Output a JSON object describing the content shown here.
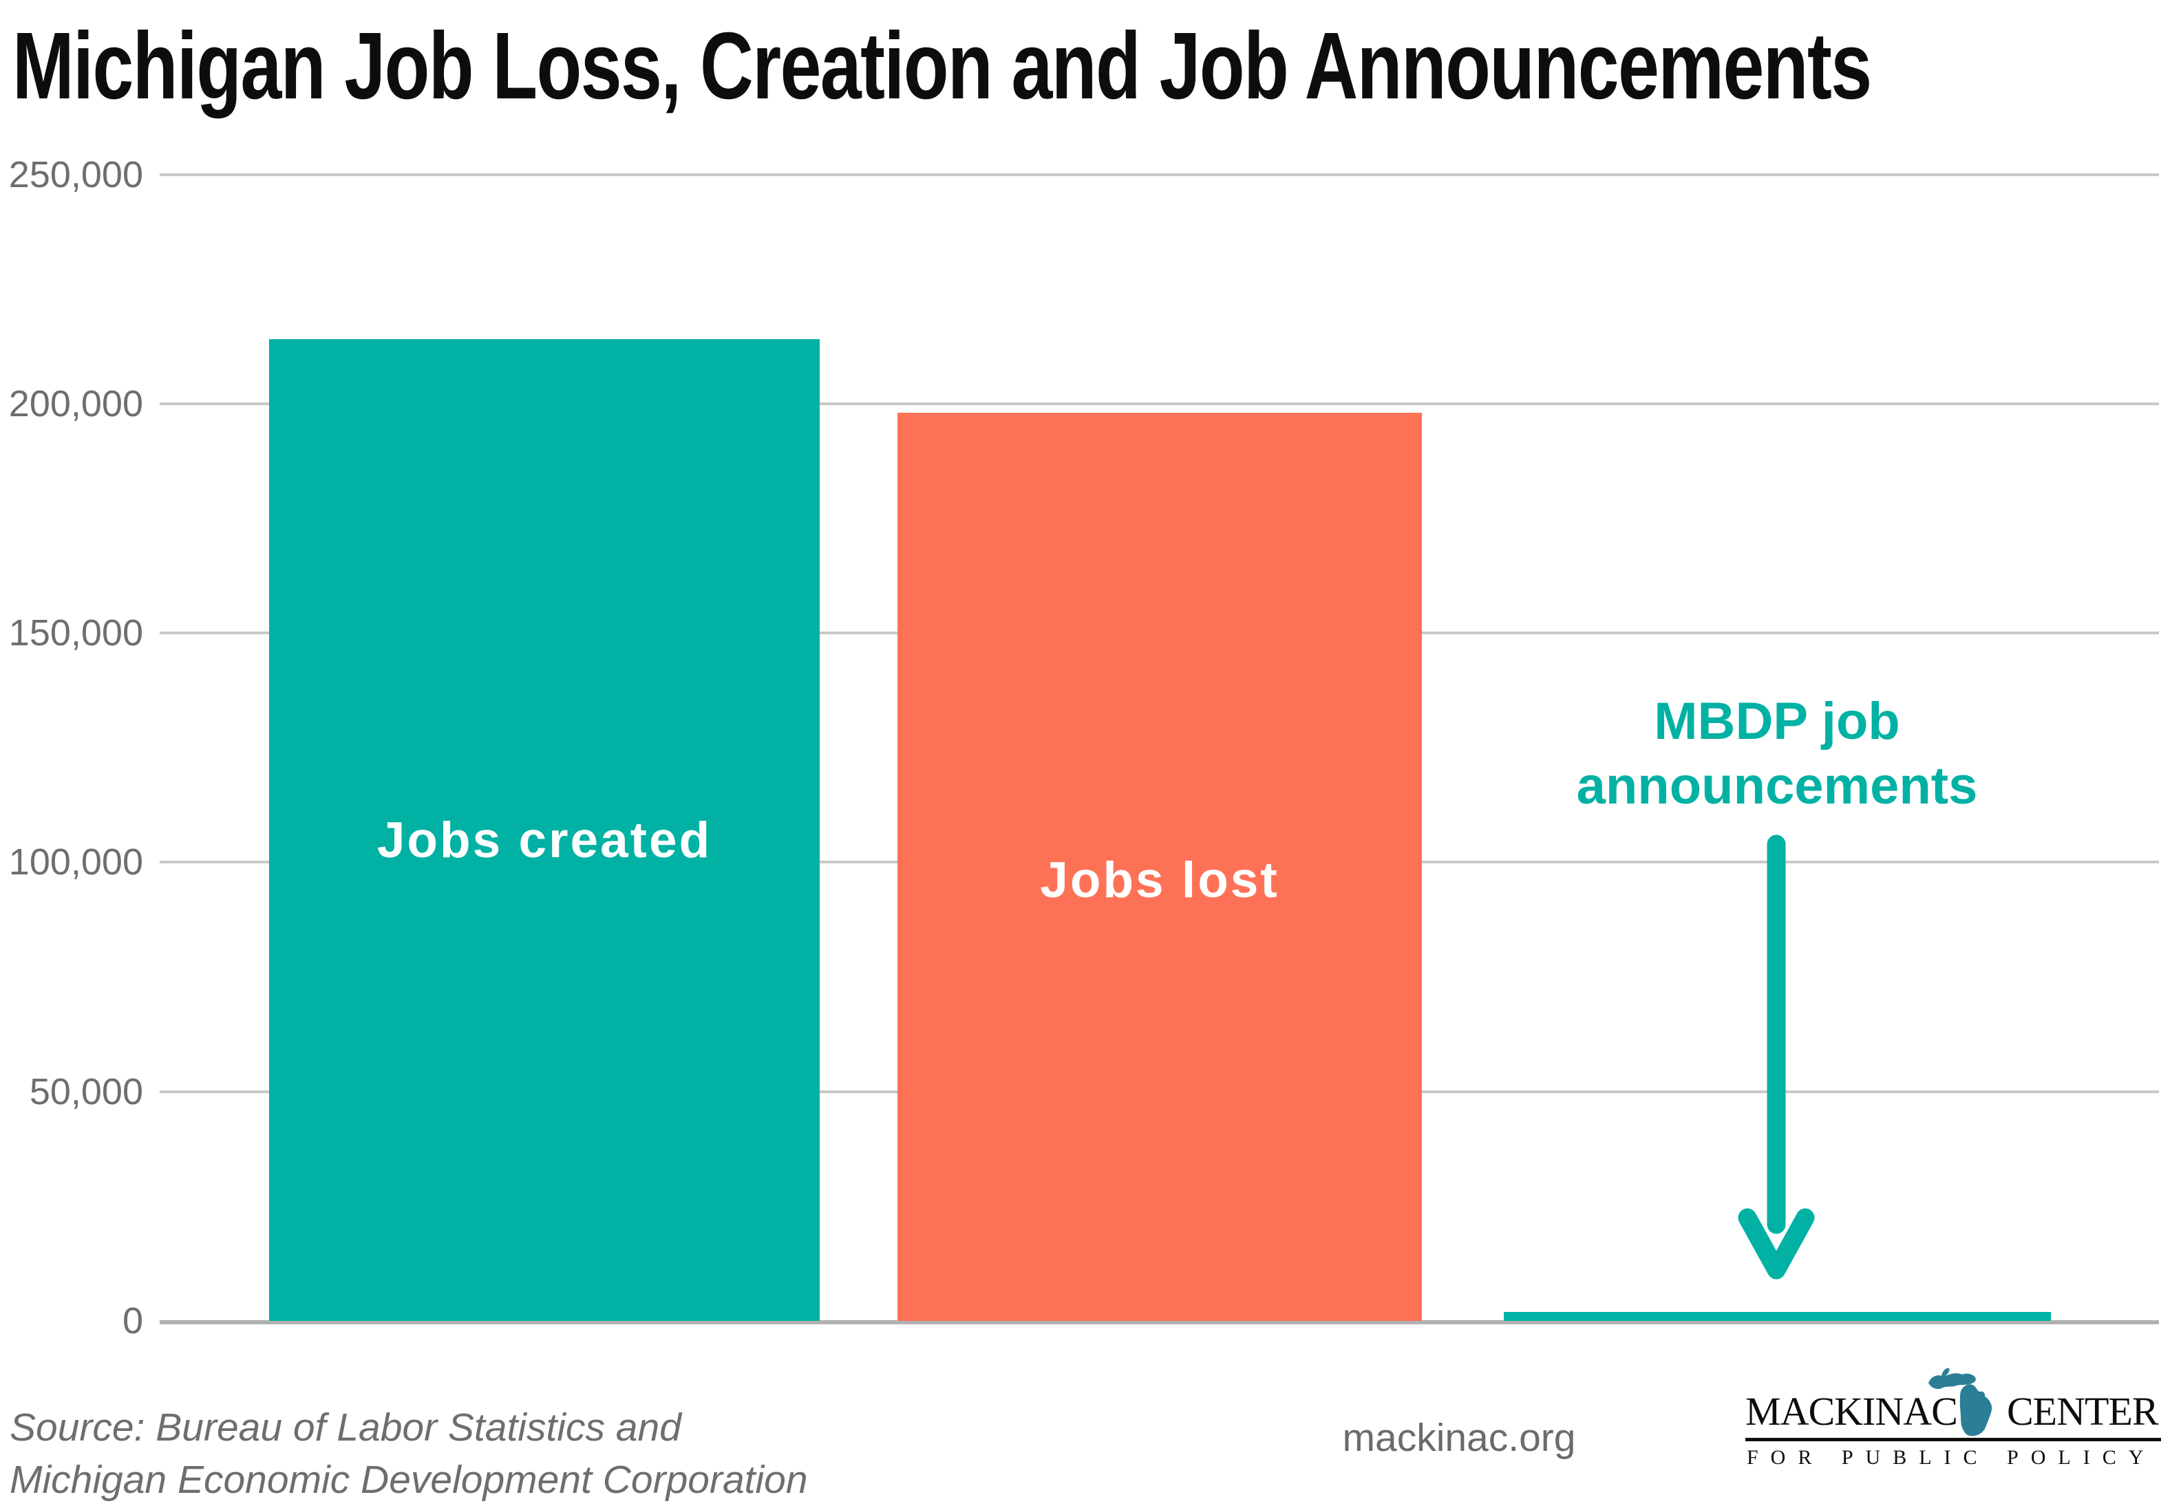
{
  "title": "Michigan Job Loss, Creation and Job Announcements",
  "chart_data": {
    "type": "bar",
    "title": "Michigan Job Loss, Creation and Job Announcements",
    "categories": [
      "Jobs created",
      "Jobs lost",
      "MBDP job announcements"
    ],
    "values": [
      214000,
      198000,
      2000
    ],
    "series": [
      {
        "name": "Jobs created",
        "value": 214000,
        "color": "#00b1a4",
        "label_inside": true,
        "label_color": "#ffffff"
      },
      {
        "name": "Jobs lost",
        "value": 198000,
        "color": "#fd7256",
        "label_inside": true,
        "label_color": "#ffffff"
      },
      {
        "name": "MBDP job announcements",
        "value": 2000,
        "color": "#00b1a4",
        "label_inside": false
      }
    ],
    "xlabel": "",
    "ylabel": "",
    "ylim": [
      0,
      250000
    ],
    "yticks": [
      {
        "value": 250000,
        "label": "250,000"
      },
      {
        "value": 200000,
        "label": "200,000"
      },
      {
        "value": 150000,
        "label": "150,000"
      },
      {
        "value": 100000,
        "label": "100,000"
      },
      {
        "value": 50000,
        "label": "50,000"
      },
      {
        "value": 0,
        "label": "0"
      }
    ],
    "grid": true,
    "legend": false,
    "annotation": {
      "line1": "MBDP job",
      "line2": "announcements",
      "color": "#00b1a4",
      "arrow": "down-arrow"
    }
  },
  "footer": {
    "source_line1": "Source: Bureau of Labor Statistics and",
    "source_line2": "Michigan Economic Development Corporation",
    "website": "mackinac.org"
  },
  "logo": {
    "word_left": "MACKINAC",
    "word_right": "CENTER",
    "tagline": "FOR PUBLIC POLICY",
    "michigan_color": "#2b7e96"
  },
  "colors": {
    "teal": "#00b1a4",
    "orange": "#fd7256",
    "title_text": "#0d0d0d",
    "axis_label_gray": "#6e6e6e",
    "gridline_gray": "#c9c9c9",
    "baseline_gray": "#b1b1b1",
    "bar_label_white": "#ffffff",
    "logo_michigan_blue": "#2b7e96"
  }
}
